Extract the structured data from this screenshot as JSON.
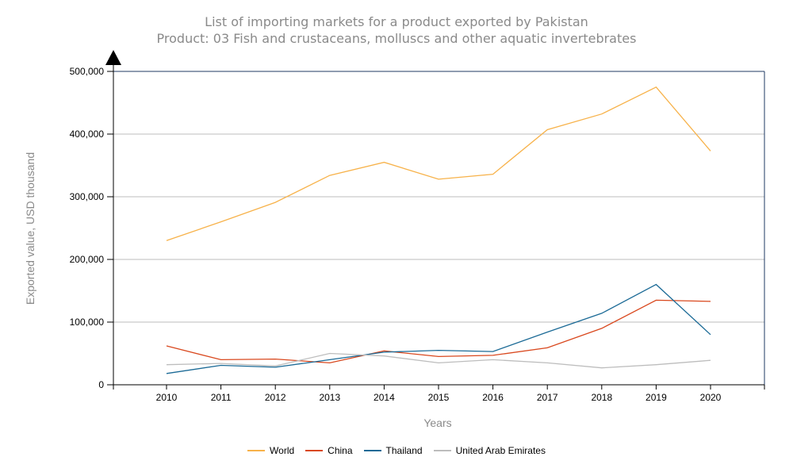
{
  "chart_data": {
    "type": "line",
    "title": "List of importing markets for a product exported by Pakistan",
    "subtitle": "Product: 03 Fish and crustaceans, molluscs and other aquatic invertebrates",
    "xlabel": "Years",
    "ylabel": "Exported value, USD thousand",
    "x": [
      2010,
      2011,
      2012,
      2013,
      2014,
      2015,
      2016,
      2017,
      2018,
      2019,
      2020
    ],
    "ylim": [
      0,
      500000
    ],
    "yticks": [
      0,
      100000,
      200000,
      300000,
      400000,
      500000
    ],
    "ytick_labels": [
      "0",
      "100,000",
      "200,000",
      "300,000",
      "400,000",
      "500,000"
    ],
    "grid": true,
    "legend_position": "bottom",
    "series": [
      {
        "name": "World",
        "color": "#f7b24a",
        "values": [
          230000,
          260000,
          291000,
          334000,
          355000,
          328000,
          336000,
          407000,
          432000,
          475000,
          373000
        ]
      },
      {
        "name": "China",
        "color": "#d9481e",
        "values": [
          62000,
          40000,
          41000,
          35000,
          54000,
          45000,
          47000,
          59000,
          90000,
          135000,
          133000
        ]
      },
      {
        "name": "Thailand",
        "color": "#1b6a96",
        "values": [
          18000,
          31000,
          28000,
          40000,
          52000,
          55000,
          53000,
          84000,
          114000,
          160000,
          80000
        ]
      },
      {
        "name": "United Arab Emirates",
        "color": "#bdbdbd",
        "values": [
          32000,
          34000,
          30000,
          50000,
          46000,
          35000,
          40000,
          35000,
          27000,
          32000,
          39000
        ]
      }
    ]
  },
  "colors": {
    "frame": "#1f3a63",
    "gridline": "#bdbdbd",
    "axis": "#000000",
    "title_text": "#8a8a8a"
  }
}
